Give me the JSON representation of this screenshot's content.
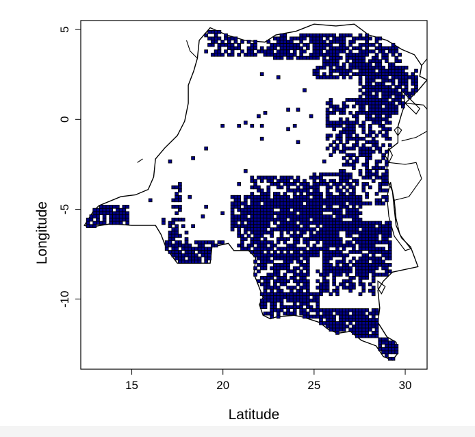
{
  "map": {
    "type": "point-grid-map",
    "xlabel": "Latitude",
    "ylabel": "Longitude",
    "xlim": [
      12.2,
      31.2
    ],
    "ylim": [
      -13.9,
      5.5
    ],
    "x_ticks": [
      {
        "value": 15,
        "label": "15"
      },
      {
        "value": 20,
        "label": "20"
      },
      {
        "value": 25,
        "label": "25"
      },
      {
        "value": 30,
        "label": "30"
      }
    ],
    "y_ticks": [
      {
        "value": 5,
        "label": "5"
      },
      {
        "value": 0,
        "label": "0"
      },
      {
        "value": -5,
        "label": "-5"
      },
      {
        "value": -10,
        "label": "-10"
      }
    ],
    "colors": {
      "fill": "#00008b",
      "border": "#000000",
      "axis": "#000000"
    },
    "cell_size_deg": 0.18,
    "outline": [
      [
        19.3,
        5.1
      ],
      [
        20.2,
        4.7
      ],
      [
        21.2,
        4.4
      ],
      [
        22.3,
        4.3
      ],
      [
        22.9,
        4.7
      ],
      [
        24.0,
        4.9
      ],
      [
        25.0,
        5.3
      ],
      [
        26.2,
        5.2
      ],
      [
        27.2,
        5.3
      ],
      [
        28.0,
        4.7
      ],
      [
        29.0,
        4.4
      ],
      [
        29.8,
        3.9
      ],
      [
        30.5,
        3.6
      ],
      [
        30.9,
        3.0
      ],
      [
        30.8,
        2.4
      ],
      [
        31.2,
        2.2
      ],
      [
        30.7,
        1.6
      ],
      [
        30.0,
        0.9
      ],
      [
        29.8,
        0.3
      ],
      [
        29.6,
        -0.4
      ],
      [
        29.6,
        -1.3
      ],
      [
        29.1,
        -1.7
      ],
      [
        29.0,
        -2.6
      ],
      [
        29.0,
        -3.3
      ],
      [
        29.3,
        -4.0
      ],
      [
        29.4,
        -5.0
      ],
      [
        29.5,
        -5.9
      ],
      [
        29.8,
        -6.6
      ],
      [
        30.3,
        -7.1
      ],
      [
        30.7,
        -8.2
      ],
      [
        29.3,
        -8.5
      ],
      [
        28.8,
        -9.0
      ],
      [
        28.5,
        -9.5
      ],
      [
        28.6,
        -10.5
      ],
      [
        28.5,
        -11.3
      ],
      [
        29.0,
        -12.1
      ],
      [
        29.5,
        -12.4
      ],
      [
        29.6,
        -13.0
      ],
      [
        29.3,
        -13.4
      ],
      [
        28.8,
        -13.2
      ],
      [
        28.4,
        -12.6
      ],
      [
        27.6,
        -12.3
      ],
      [
        27.0,
        -11.8
      ],
      [
        26.3,
        -11.9
      ],
      [
        25.8,
        -11.7
      ],
      [
        25.3,
        -11.3
      ],
      [
        24.4,
        -11.0
      ],
      [
        23.9,
        -10.9
      ],
      [
        22.9,
        -11.0
      ],
      [
        22.6,
        -11.1
      ],
      [
        22.2,
        -10.9
      ],
      [
        22.0,
        -10.3
      ],
      [
        22.2,
        -9.9
      ],
      [
        21.7,
        -8.6
      ],
      [
        21.8,
        -7.7
      ],
      [
        21.4,
        -7.3
      ],
      [
        20.6,
        -7.3
      ],
      [
        20.3,
        -6.9
      ],
      [
        19.4,
        -7.1
      ],
      [
        19.3,
        -8.0
      ],
      [
        18.2,
        -8.0
      ],
      [
        17.5,
        -8.0
      ],
      [
        16.9,
        -7.2
      ],
      [
        16.6,
        -6.4
      ],
      [
        16.3,
        -5.9
      ],
      [
        15.0,
        -5.9
      ],
      [
        13.9,
        -5.8
      ],
      [
        12.7,
        -6.0
      ],
      [
        12.4,
        -5.9
      ],
      [
        12.9,
        -5.1
      ],
      [
        13.2,
        -4.8
      ],
      [
        14.4,
        -4.3
      ],
      [
        15.2,
        -4.2
      ],
      [
        15.9,
        -3.9
      ],
      [
        16.2,
        -3.2
      ],
      [
        16.3,
        -2.2
      ],
      [
        16.8,
        -1.6
      ],
      [
        17.5,
        -0.9
      ],
      [
        17.9,
        -0.1
      ],
      [
        18.1,
        0.9
      ],
      [
        18.1,
        1.9
      ],
      [
        18.4,
        2.7
      ],
      [
        18.6,
        3.4
      ],
      [
        18.7,
        4.4
      ],
      [
        19.3,
        5.1
      ]
    ],
    "lakes": [
      [
        [
          29.8,
          1.6
        ],
        [
          30.4,
          1.0
        ],
        [
          30.8,
          0.6
        ],
        [
          30.6,
          0.3
        ],
        [
          30.0,
          0.9
        ],
        [
          29.8,
          1.6
        ]
      ],
      [
        [
          29.4,
          -0.6
        ],
        [
          29.6,
          -0.4
        ],
        [
          29.8,
          -0.6
        ],
        [
          29.6,
          -0.9
        ],
        [
          29.4,
          -0.6
        ]
      ],
      [
        [
          29.1,
          -1.6
        ],
        [
          29.3,
          -2.0
        ],
        [
          29.1,
          -2.4
        ],
        [
          28.9,
          -2.0
        ],
        [
          29.1,
          -1.6
        ]
      ],
      [
        [
          29.2,
          -3.5
        ],
        [
          29.4,
          -4.5
        ],
        [
          29.5,
          -5.5
        ],
        [
          29.7,
          -6.4
        ],
        [
          30.3,
          -7.2
        ],
        [
          30.0,
          -7.3
        ],
        [
          29.4,
          -6.5
        ],
        [
          29.1,
          -5.4
        ],
        [
          29.0,
          -4.3
        ],
        [
          29.2,
          -3.5
        ]
      ],
      [
        [
          28.5,
          -9.0
        ],
        [
          28.9,
          -9.3
        ],
        [
          28.7,
          -9.7
        ],
        [
          28.5,
          -9.4
        ],
        [
          28.5,
          -9.0
        ]
      ]
    ],
    "neighbors": [
      [
        [
          30.9,
          3.0
        ],
        [
          31.3,
          3.5
        ],
        [
          31.8,
          3.8
        ],
        [
          31.5,
          2.9
        ],
        [
          31.2,
          2.2
        ]
      ],
      [
        [
          30.0,
          0.9
        ],
        [
          31.0,
          0.8
        ],
        [
          31.5,
          0.2
        ],
        [
          31.3,
          -0.6
        ],
        [
          30.6,
          -1.0
        ],
        [
          29.8,
          -1.2
        ]
      ],
      [
        [
          29.1,
          -2.4
        ],
        [
          30.0,
          -2.5
        ],
        [
          30.6,
          -2.4
        ],
        [
          30.9,
          -3.3
        ],
        [
          30.2,
          -4.3
        ],
        [
          29.4,
          -4.5
        ]
      ],
      [
        [
          28.5,
          -11.3
        ],
        [
          27.9,
          -11.1
        ],
        [
          27.6,
          -11.6
        ]
      ],
      [
        [
          18.6,
          3.4
        ],
        [
          18.2,
          3.8
        ],
        [
          18.0,
          4.4
        ]
      ],
      [
        [
          15.6,
          -2.2
        ],
        [
          15.3,
          -2.4
        ]
      ]
    ],
    "clusters": [
      {
        "x0": 19.0,
        "y0": 3.6,
        "x1": 22.6,
        "y1": 4.9,
        "d": 0.55
      },
      {
        "x0": 22.8,
        "y0": 3.4,
        "x1": 25.4,
        "y1": 4.7,
        "d": 0.75
      },
      {
        "x0": 25.0,
        "y0": 2.4,
        "x1": 29.8,
        "y1": 4.8,
        "d": 0.7
      },
      {
        "x0": 27.5,
        "y0": 0.4,
        "x1": 30.6,
        "y1": 3.0,
        "d": 0.72
      },
      {
        "x0": 25.8,
        "y0": -1.9,
        "x1": 29.3,
        "y1": 1.2,
        "d": 0.55
      },
      {
        "x0": 26.4,
        "y0": -4.6,
        "x1": 29.0,
        "y1": -1.9,
        "d": 0.5
      },
      {
        "x0": 21.6,
        "y0": -5.4,
        "x1": 25.5,
        "y1": -3.2,
        "d": 0.6
      },
      {
        "x0": 25.0,
        "y0": -4.7,
        "x1": 26.6,
        "y1": -3.0,
        "d": 0.5
      },
      {
        "x0": 20.5,
        "y0": -6.2,
        "x1": 27.6,
        "y1": -4.4,
        "d": 0.82
      },
      {
        "x0": 20.8,
        "y0": -7.5,
        "x1": 26.0,
        "y1": -5.9,
        "d": 0.72
      },
      {
        "x0": 25.5,
        "y0": -8.6,
        "x1": 29.2,
        "y1": -5.6,
        "d": 0.75
      },
      {
        "x0": 21.8,
        "y0": -9.9,
        "x1": 24.8,
        "y1": -7.4,
        "d": 0.72
      },
      {
        "x0": 21.9,
        "y0": -11.0,
        "x1": 25.3,
        "y1": -9.6,
        "d": 0.78
      },
      {
        "x0": 25.2,
        "y0": -9.8,
        "x1": 28.3,
        "y1": -8.2,
        "d": 0.5
      },
      {
        "x0": 25.2,
        "y0": -12.0,
        "x1": 28.6,
        "y1": -10.4,
        "d": 0.9
      },
      {
        "x0": 28.6,
        "y0": -13.3,
        "x1": 29.6,
        "y1": -12.1,
        "d": 0.85
      },
      {
        "x0": 17.0,
        "y0": -8.0,
        "x1": 20.2,
        "y1": -6.8,
        "d": 0.72
      },
      {
        "x0": 16.8,
        "y0": -6.9,
        "x1": 18.2,
        "y1": -5.6,
        "d": 0.42
      },
      {
        "x0": 12.6,
        "y0": -6.0,
        "x1": 14.9,
        "y1": -4.9,
        "d": 0.8
      },
      {
        "x0": 17.2,
        "y0": -5.2,
        "x1": 17.7,
        "y1": -3.6,
        "d": 0.5
      }
    ],
    "scatter_cells": [
      [
        20.0,
        -0.3
      ],
      [
        20.9,
        -0.4
      ],
      [
        21.3,
        -0.1
      ],
      [
        21.9,
        0.2
      ],
      [
        22.4,
        0.3
      ],
      [
        21.6,
        -0.3
      ],
      [
        22.1,
        -0.4
      ],
      [
        19.1,
        -1.6
      ],
      [
        18.4,
        -2.1
      ],
      [
        24.0,
        -0.3
      ],
      [
        22.1,
        -1.0
      ],
      [
        23.6,
        -0.6
      ],
      [
        16.0,
        -4.5
      ],
      [
        17.6,
        -3.6
      ],
      [
        18.2,
        -4.4
      ],
      [
        19.0,
        -4.9
      ],
      [
        20.8,
        -3.6
      ],
      [
        21.2,
        -2.8
      ],
      [
        17.1,
        -2.4
      ],
      [
        21.7,
        3.6
      ],
      [
        22.2,
        2.6
      ],
      [
        23.1,
        2.3
      ],
      [
        24.4,
        1.6
      ],
      [
        24.1,
        0.6
      ],
      [
        24.9,
        0.2
      ],
      [
        23.5,
        0.6
      ],
      [
        24.1,
        -1.3
      ],
      [
        18.9,
        -5.4
      ],
      [
        18.3,
        -6.0
      ],
      [
        19.9,
        -5.2
      ],
      [
        26.0,
        -3.0
      ],
      [
        25.6,
        -2.4
      ],
      [
        19.4,
        4.2
      ],
      [
        19.7,
        4.6
      ],
      [
        20.6,
        5.0
      ]
    ]
  }
}
